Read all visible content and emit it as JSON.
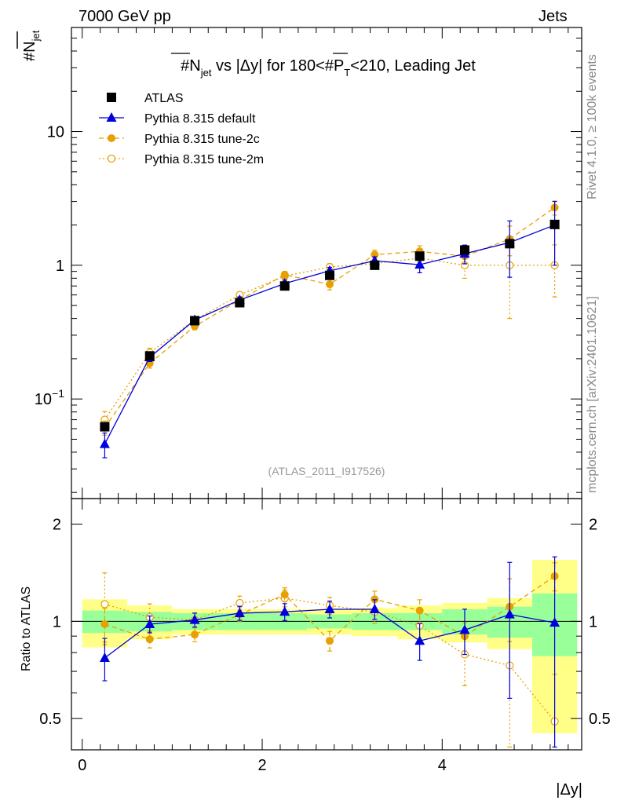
{
  "header": {
    "left": "7000 GeV pp",
    "right": "Jets"
  },
  "side_labels": {
    "rivet": "Rivet 4.1.0, ≥ 100k events",
    "mcplots": "mcplots.cern.ch [arXiv:2401.10621]"
  },
  "chart_data": {
    "type": "line",
    "title": "#N_jet vs |Δy| for 180<#P_T<210, Leading Jet",
    "title_parts": {
      "prefix": "#",
      "n": "N",
      "n_sub": "jet",
      "middle": " vs |Δy| for 180<#",
      "p": "P",
      "p_sub": "T",
      "suffix": "<210, Leading Jet"
    },
    "ylabel": "#N_jet",
    "ylabel_parts": {
      "n": "#N",
      "sub": "jet"
    },
    "xlabel": "|Δy|",
    "watermark": "(ATLAS_2011_I917526)",
    "ratio_ylabel": "Ratio to ATLAS",
    "ylog": true,
    "ylim": [
      0.018,
      60
    ],
    "xlim": [
      -0.12,
      5.55
    ],
    "ratio_ylim": [
      0.4,
      2.4
    ],
    "x_ticks": [
      "0",
      "2",
      "4"
    ],
    "x_tick_values": [
      0,
      2,
      4
    ],
    "y_tick_labels": [
      {
        "value": 0.1,
        "base": "10",
        "exp": "−1"
      },
      {
        "value": 1,
        "base": "1",
        "exp": ""
      },
      {
        "value": 10,
        "base": "10",
        "exp": ""
      }
    ],
    "ratio_ticks": [
      "0.5",
      "1",
      "2"
    ],
    "ratio_tick_values": [
      0.5,
      1,
      2
    ],
    "x": [
      0.25,
      0.75,
      1.25,
      1.75,
      2.25,
      2.75,
      3.25,
      3.75,
      4.25,
      4.75,
      5.25
    ],
    "bin_edges": [
      0.0,
      0.5,
      1.0,
      1.5,
      2.0,
      2.5,
      3.0,
      3.5,
      4.0,
      4.5,
      5.0,
      5.5
    ],
    "band_inner_half": [
      0.08,
      0.07,
      0.06,
      0.06,
      0.06,
      0.05,
      0.06,
      0.06,
      0.09,
      0.11,
      0.22
    ],
    "band_outer_half": [
      0.17,
      0.12,
      0.09,
      0.09,
      0.09,
      0.09,
      0.1,
      0.12,
      0.14,
      0.18,
      0.55
    ],
    "series": [
      {
        "name": "ATLAS",
        "color": "#000000",
        "marker": "square",
        "line": "none",
        "values": [
          0.062,
          0.21,
          0.385,
          0.525,
          0.7,
          0.84,
          1.0,
          1.17,
          1.3,
          1.45,
          2.02
        ],
        "ratio": [
          1,
          1,
          1,
          1,
          1,
          1,
          1,
          1,
          1,
          1,
          1
        ]
      },
      {
        "name": "Pythia 8.315 default",
        "color": "#0000dd",
        "marker": "triangle",
        "line": "solid",
        "values": [
          0.046,
          0.205,
          0.39,
          0.55,
          0.73,
          0.91,
          1.08,
          1.01,
          1.22,
          1.48,
          2.0
        ],
        "err": [
          0.21,
          0.07,
          0.05,
          0.05,
          0.06,
          0.06,
          0.07,
          0.13,
          0.16,
          0.45,
          0.5
        ],
        "ratio": [
          0.77,
          0.98,
          1.01,
          1.06,
          1.07,
          1.09,
          1.09,
          0.87,
          0.94,
          1.05,
          0.99
        ],
        "ratio_err": [
          0.15,
          0.06,
          0.05,
          0.05,
          0.06,
          0.06,
          0.07,
          0.13,
          0.16,
          0.45,
          0.6
        ]
      },
      {
        "name": "Pythia 8.315 tune-2c",
        "color": "#e8a000",
        "marker": "circle",
        "line": "dashed",
        "values": [
          0.061,
          0.185,
          0.35,
          0.55,
          0.85,
          0.72,
          1.2,
          1.27,
          1.17,
          1.57,
          2.7
        ],
        "err": [
          0.12,
          0.08,
          0.06,
          0.06,
          0.06,
          0.09,
          0.08,
          0.1,
          0.12,
          0.25,
          0.12
        ],
        "ratio": [
          0.98,
          0.88,
          0.91,
          1.05,
          1.21,
          0.87,
          1.17,
          1.08,
          0.9,
          1.11,
          1.38
        ],
        "ratio_err": [
          0.12,
          0.06,
          0.05,
          0.05,
          0.05,
          0.07,
          0.06,
          0.08,
          0.1,
          0.22,
          0.1
        ]
      },
      {
        "name": "Pythia 8.315 tune-2m",
        "color": "#e8a000",
        "marker": "open-circle",
        "line": "dotted",
        "values": [
          0.07,
          0.222,
          0.39,
          0.6,
          0.83,
          0.97,
          1.03,
          1.13,
          1.0,
          1.0,
          1.0
        ],
        "err": [
          0.15,
          0.08,
          0.05,
          0.05,
          0.06,
          0.06,
          0.08,
          0.12,
          0.2,
          0.6,
          0.42
        ],
        "ratio": [
          1.13,
          1.03,
          1.01,
          1.14,
          1.18,
          1.12,
          1.07,
          0.97,
          0.79,
          0.73,
          0.49
        ],
        "ratio_err": [
          0.25,
          0.1,
          0.05,
          0.05,
          0.06,
          0.06,
          0.08,
          0.12,
          0.2,
          0.45,
          0.4
        ]
      }
    ]
  }
}
